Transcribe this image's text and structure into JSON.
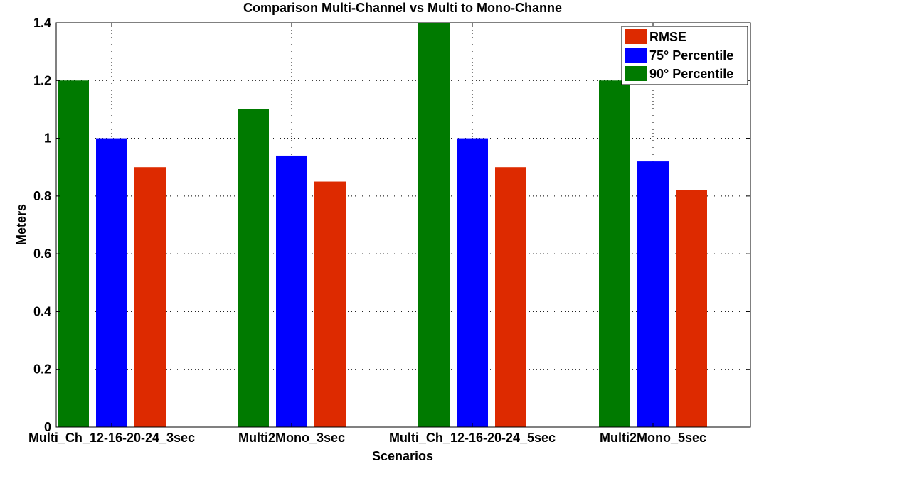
{
  "chart_data": {
    "type": "bar",
    "title": "Comparison Multi-Channel vs Multi to Mono-Channe",
    "xlabel": "Scenarios",
    "ylabel": "Meters",
    "ylim": [
      0,
      1.4
    ],
    "yticks": [
      "0",
      "0.2",
      "0.4",
      "0.6",
      "0.8",
      "1",
      "1.2",
      "1.4"
    ],
    "ytick_values": [
      0,
      0.2,
      0.4,
      0.6,
      0.8,
      1.0,
      1.2,
      1.4
    ],
    "grid": true,
    "legend_position": "top-right",
    "categories": [
      "Multi_Ch_12-16-20-24_3sec",
      "Multi2Mono_3sec",
      "Multi_Ch_12-16-20-24_5sec",
      "Multi2Mono_5sec"
    ],
    "series": [
      {
        "name": "90° Percentile",
        "color": "#007a00",
        "values": [
          1.2,
          1.1,
          1.4,
          1.2
        ]
      },
      {
        "name": "75° Percentile",
        "color": "#0000ff",
        "values": [
          1.0,
          0.94,
          1.0,
          0.92
        ]
      },
      {
        "name": "RMSE",
        "color": "#dd2a00",
        "values": [
          0.9,
          0.85,
          0.9,
          0.82
        ]
      }
    ],
    "legend": [
      {
        "name": "RMSE",
        "color": "#dd2a00"
      },
      {
        "name": "75° Percentile",
        "color": "#0000ff"
      },
      {
        "name": "90° Percentile",
        "color": "#007a00"
      }
    ]
  }
}
